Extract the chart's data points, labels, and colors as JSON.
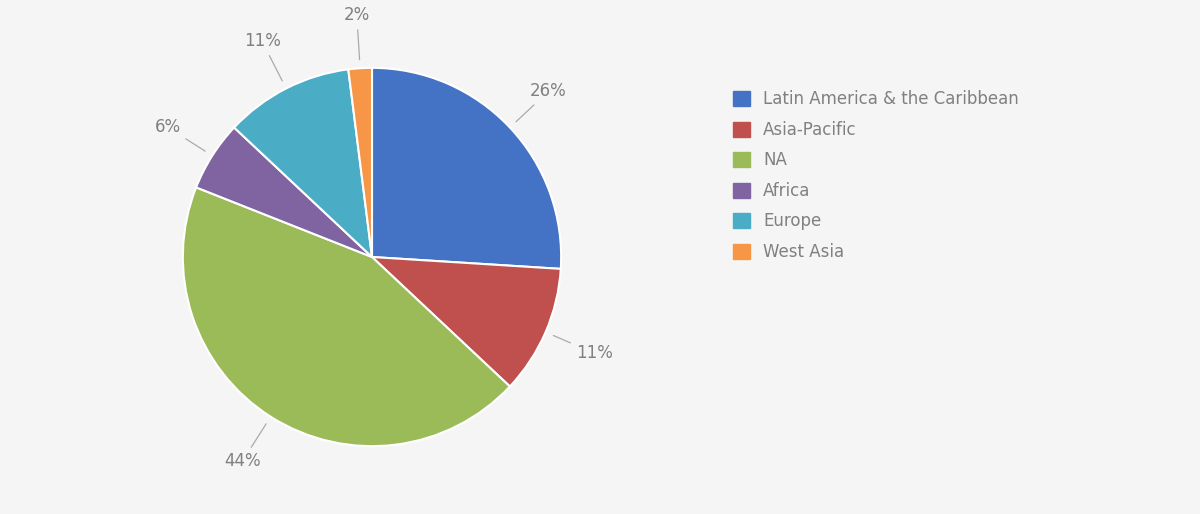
{
  "labels": [
    "Latin America & the Caribbean",
    "Asia-Pacific",
    "NA",
    "Africa",
    "Europe",
    "West Asia"
  ],
  "values": [
    26,
    11,
    44,
    6,
    11,
    2
  ],
  "colors": [
    "#4472C4",
    "#C0504D",
    "#9BBB59",
    "#8064A2",
    "#4BACC6",
    "#F79646"
  ],
  "pct_labels": [
    "26%",
    "11%",
    "44%",
    "6%",
    "11%",
    "2%"
  ],
  "background_color": "#f5f5f5",
  "text_color": "#808080",
  "legend_fontsize": 12,
  "pct_fontsize": 12,
  "figsize": [
    12.0,
    5.14
  ],
  "dpi": 100
}
